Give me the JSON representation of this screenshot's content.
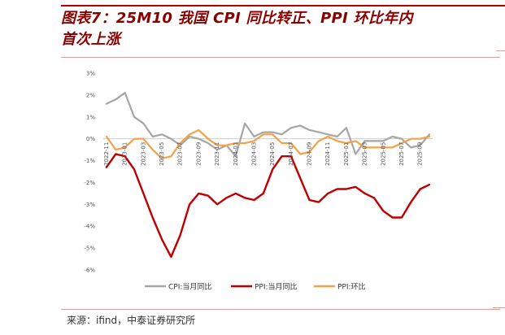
{
  "header": {
    "title_line1": "图表7：25M10 我国 CPI 同比转正、PPI 环比年内",
    "title_line2": "首次上涨"
  },
  "footer": {
    "source": "来源：ifind，中泰证券研究所"
  },
  "colors": {
    "cpi": "#a6a6a6",
    "ppi_yoy": "#c00000",
    "ppi_mom": "#f4a14a",
    "accent": "#8b0000"
  },
  "chart_data": {
    "type": "line",
    "title": "",
    "xlabel": "",
    "ylabel": "",
    "ylim": [
      -6,
      3
    ],
    "yticks": [
      "3%",
      "2%",
      "1%",
      "0%",
      "-1%",
      "-2%",
      "-3%",
      "-4%",
      "-5%",
      "-6%"
    ],
    "x": [
      "2022-11",
      "2022-12",
      "2023-01",
      "2023-02",
      "2023-03",
      "2023-04",
      "2023-05",
      "2023-06",
      "2023-07",
      "2023-08",
      "2023-09",
      "2023-10",
      "2023-11",
      "2023-12",
      "2024-01",
      "2024-02",
      "2024-03",
      "2024-04",
      "2024-05",
      "2024-06",
      "2024-07",
      "2024-08",
      "2024-09",
      "2024-10",
      "2024-11",
      "2024-12",
      "2025-01",
      "2025-02",
      "2025-03",
      "2025-04",
      "2025-05",
      "2025-06",
      "2025-07",
      "2025-08",
      "2025-09",
      "2025-10"
    ],
    "xtick_labels": [
      "2022-11",
      "2023-01",
      "2023-03",
      "2023-05",
      "2023-07",
      "2023-09",
      "2023-11",
      "2024-01",
      "2024-03",
      "2024-05",
      "2024-07",
      "2024-09",
      "2024-11",
      "2025-01",
      "2025-03",
      "2025-05",
      "2025-07",
      "2025-09"
    ],
    "legend_position": "bottom",
    "series": [
      {
        "name": "CPI:当月同比",
        "values": [
          1.6,
          1.8,
          2.1,
          1.0,
          0.7,
          0.1,
          0.2,
          0.0,
          -0.3,
          0.1,
          0.0,
          -0.2,
          -0.5,
          -0.3,
          -0.8,
          0.7,
          0.1,
          0.3,
          0.3,
          0.2,
          0.5,
          0.6,
          0.4,
          0.3,
          0.2,
          0.1,
          0.5,
          -0.7,
          -0.1,
          -0.1,
          -0.1,
          0.1,
          0.0,
          -0.4,
          -0.3,
          0.2
        ]
      },
      {
        "name": "PPI:当月同比",
        "values": [
          -1.3,
          -0.7,
          -0.8,
          -1.4,
          -2.5,
          -3.6,
          -4.6,
          -5.4,
          -4.4,
          -3.0,
          -2.5,
          -2.6,
          -3.0,
          -2.7,
          -2.5,
          -2.7,
          -2.8,
          -2.5,
          -1.4,
          -0.8,
          -0.8,
          -1.8,
          -2.8,
          -2.9,
          -2.5,
          -2.3,
          -2.3,
          -2.2,
          -2.5,
          -2.7,
          -3.3,
          -3.6,
          -3.6,
          -2.9,
          -2.3,
          -2.1
        ]
      },
      {
        "name": "PPI:环比",
        "values": [
          0.1,
          -0.5,
          -0.4,
          0.0,
          0.0,
          -0.5,
          -0.9,
          -0.8,
          -0.2,
          0.2,
          0.4,
          0.0,
          -0.3,
          -0.3,
          -0.2,
          -0.2,
          -0.1,
          0.2,
          0.2,
          -0.2,
          -0.2,
          -0.7,
          -0.6,
          -0.1,
          0.1,
          -0.1,
          -0.2,
          -0.1,
          -0.4,
          -0.4,
          -0.4,
          -0.4,
          -0.2,
          0.0,
          0.0,
          0.1
        ]
      }
    ]
  }
}
